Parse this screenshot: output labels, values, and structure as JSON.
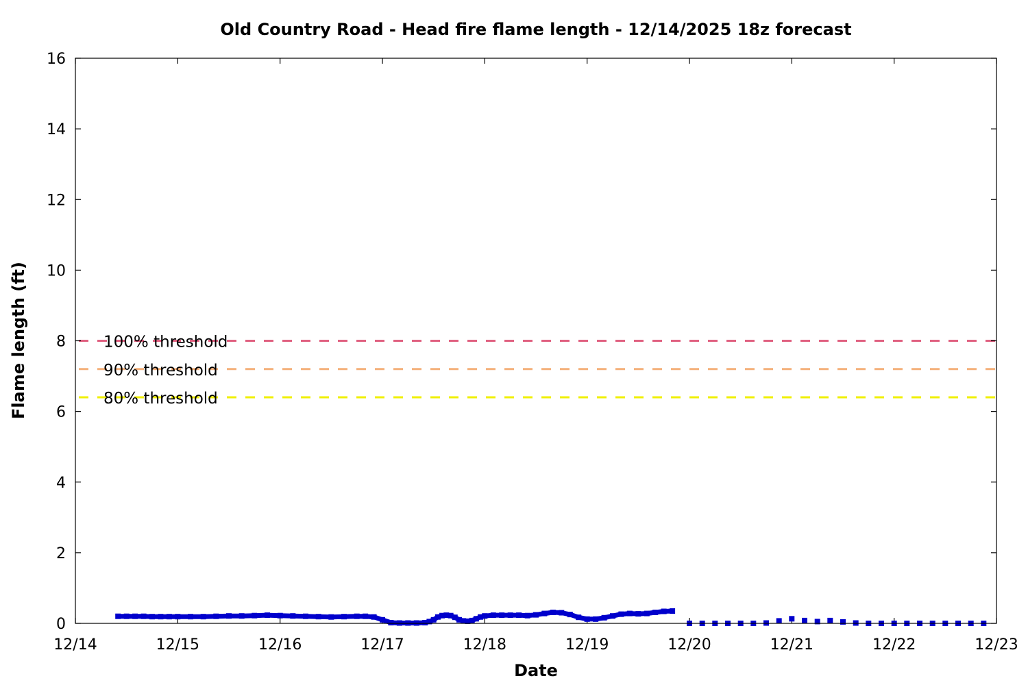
{
  "chart_data": {
    "type": "line",
    "title": "Old Country Road - Head fire flame length - 12/14/2025 18z forecast",
    "xlabel": "Date",
    "ylabel": "Flame length (ft)",
    "xlim": [
      "12/14",
      "12/23"
    ],
    "ylim": [
      0,
      16
    ],
    "x_ticks": [
      "12/14",
      "12/15",
      "12/16",
      "12/17",
      "12/18",
      "12/19",
      "12/20",
      "12/21",
      "12/22",
      "12/23"
    ],
    "y_ticks": [
      0,
      2,
      4,
      6,
      8,
      10,
      12,
      14,
      16
    ],
    "grid": false,
    "thresholds": [
      {
        "label": "100% threshold",
        "value": 8.0,
        "color": "#e06080"
      },
      {
        "label": "90% threshold",
        "value": 7.2,
        "color": "#f4b07a"
      },
      {
        "label": "80% threshold",
        "value": 6.4,
        "color": "#f0f000"
      }
    ],
    "series": [
      {
        "style": "hourly",
        "color": "#0000cc",
        "points": [
          [
            "12/14 10:00",
            0.2
          ],
          [
            "12/14 12:00",
            0.2
          ],
          [
            "12/14 14:00",
            0.2
          ],
          [
            "12/14 16:00",
            0.2
          ],
          [
            "12/14 18:00",
            0.19
          ],
          [
            "12/14 20:00",
            0.19
          ],
          [
            "12/14 22:00",
            0.19
          ],
          [
            "12/15 00:00",
            0.19
          ],
          [
            "12/15 03:00",
            0.19
          ],
          [
            "12/15 06:00",
            0.19
          ],
          [
            "12/15 09:00",
            0.2
          ],
          [
            "12/15 12:00",
            0.21
          ],
          [
            "12/15 15:00",
            0.21
          ],
          [
            "12/15 18:00",
            0.22
          ],
          [
            "12/15 21:00",
            0.23
          ],
          [
            "12/16 00:00",
            0.22
          ],
          [
            "12/16 03:00",
            0.21
          ],
          [
            "12/16 06:00",
            0.2
          ],
          [
            "12/16 09:00",
            0.19
          ],
          [
            "12/16 12:00",
            0.18
          ],
          [
            "12/16 15:00",
            0.19
          ],
          [
            "12/16 18:00",
            0.2
          ],
          [
            "12/16 20:00",
            0.2
          ],
          [
            "12/16 22:00",
            0.18
          ],
          [
            "12/17 00:00",
            0.1
          ],
          [
            "12/17 02:00",
            0.02
          ],
          [
            "12/17 04:00",
            0.01
          ],
          [
            "12/17 06:00",
            0.01
          ],
          [
            "12/17 08:00",
            0.01
          ],
          [
            "12/17 10:00",
            0.02
          ],
          [
            "12/17 11:00",
            0.05
          ],
          [
            "12/17 12:00",
            0.1
          ],
          [
            "12/17 13:00",
            0.18
          ],
          [
            "12/17 14:00",
            0.22
          ],
          [
            "12/17 15:00",
            0.23
          ],
          [
            "12/17 16:00",
            0.22
          ],
          [
            "12/17 17:00",
            0.17
          ],
          [
            "12/17 18:00",
            0.1
          ],
          [
            "12/17 19:00",
            0.07
          ],
          [
            "12/17 20:00",
            0.06
          ],
          [
            "12/17 21:00",
            0.08
          ],
          [
            "12/17 22:00",
            0.13
          ],
          [
            "12/17 23:00",
            0.18
          ],
          [
            "12/18 00:00",
            0.21
          ],
          [
            "12/18 02:00",
            0.23
          ],
          [
            "12/18 04:00",
            0.23
          ],
          [
            "12/18 06:00",
            0.23
          ],
          [
            "12/18 08:00",
            0.23
          ],
          [
            "12/18 10:00",
            0.22
          ],
          [
            "12/18 12:00",
            0.24
          ],
          [
            "12/18 14:00",
            0.28
          ],
          [
            "12/18 16:00",
            0.31
          ],
          [
            "12/18 18:00",
            0.3
          ],
          [
            "12/18 20:00",
            0.25
          ],
          [
            "12/18 22:00",
            0.17
          ],
          [
            "12/19 00:00",
            0.12
          ],
          [
            "12/19 02:00",
            0.12
          ],
          [
            "12/19 04:00",
            0.16
          ],
          [
            "12/19 06:00",
            0.21
          ],
          [
            "12/19 08:00",
            0.26
          ],
          [
            "12/19 10:00",
            0.28
          ],
          [
            "12/19 12:00",
            0.27
          ],
          [
            "12/19 14:00",
            0.28
          ],
          [
            "12/19 16:00",
            0.31
          ],
          [
            "12/19 18:00",
            0.34
          ],
          [
            "12/19 20:00",
            0.35
          ]
        ]
      },
      {
        "style": "3-hourly",
        "color": "#0000cc",
        "points": [
          [
            "12/20 00:00",
            0.0
          ],
          [
            "12/20 03:00",
            0.0
          ],
          [
            "12/20 06:00",
            0.0
          ],
          [
            "12/20 09:00",
            0.0
          ],
          [
            "12/20 12:00",
            0.0
          ],
          [
            "12/20 15:00",
            0.0
          ],
          [
            "12/20 18:00",
            0.01
          ],
          [
            "12/20 21:00",
            0.07
          ],
          [
            "12/21 00:00",
            0.13
          ],
          [
            "12/21 03:00",
            0.08
          ],
          [
            "12/21 06:00",
            0.05
          ],
          [
            "12/21 09:00",
            0.08
          ],
          [
            "12/21 12:00",
            0.04
          ],
          [
            "12/21 15:00",
            0.01
          ],
          [
            "12/21 18:00",
            0.0
          ],
          [
            "12/21 21:00",
            0.0
          ],
          [
            "12/22 00:00",
            0.0
          ],
          [
            "12/22 03:00",
            0.0
          ],
          [
            "12/22 06:00",
            0.0
          ],
          [
            "12/22 09:00",
            0.0
          ],
          [
            "12/22 12:00",
            0.0
          ],
          [
            "12/22 15:00",
            0.0
          ],
          [
            "12/22 18:00",
            0.0
          ],
          [
            "12/22 21:00",
            0.0
          ]
        ]
      }
    ]
  }
}
